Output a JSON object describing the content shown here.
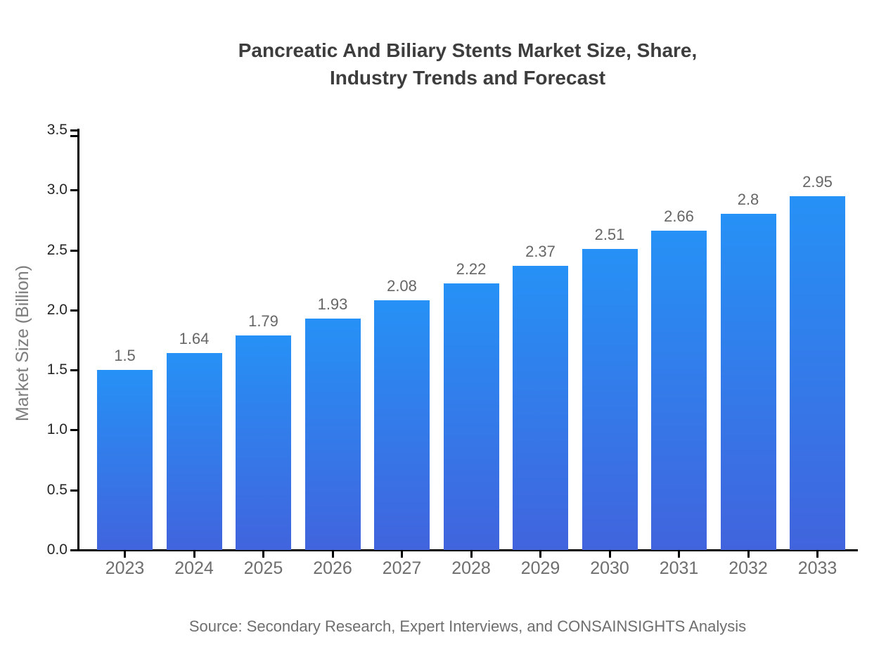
{
  "page": {
    "title_line1": "Pancreatic And Biliary Stents Market Size, Share,",
    "title_line2": "Industry Trends and Forecast",
    "source": "Source: Secondary Research, Expert Interviews, and CONSAINSIGHTS Analysis"
  },
  "chart_data": {
    "type": "bar",
    "title": "Pancreatic And Biliary Stents Market Size, Share, Industry Trends and Forecast",
    "categories": [
      "2023",
      "2024",
      "2025",
      "2026",
      "2027",
      "2028",
      "2029",
      "2030",
      "2031",
      "2032",
      "2033"
    ],
    "values": [
      1.5,
      1.64,
      1.79,
      1.93,
      2.08,
      2.22,
      2.37,
      2.51,
      2.66,
      2.8,
      2.95
    ],
    "value_labels": [
      "1.5",
      "1.64",
      "1.79",
      "1.93",
      "2.08",
      "2.22",
      "2.37",
      "2.51",
      "2.66",
      "2.8",
      "2.95"
    ],
    "xlabel": "",
    "ylabel": "Market Size (Billion)",
    "ylim": [
      0,
      3.5
    ],
    "yticks": [
      0.0,
      0.5,
      1.0,
      1.5,
      2.0,
      2.5,
      3.0,
      3.5
    ],
    "ytick_labels": [
      "0.0",
      "0.5",
      "1.0",
      "1.5",
      "2.0",
      "2.5",
      "3.0",
      "3.5"
    ],
    "grid": false,
    "legend": false,
    "bar_color_top": "#2691f6",
    "bar_color_bottom": "#4164dd",
    "value_label_color": "#666666",
    "axis_color": "#000000",
    "source": "Source: Secondary Research, Expert Interviews, and CONSAINSIGHTS Analysis"
  }
}
